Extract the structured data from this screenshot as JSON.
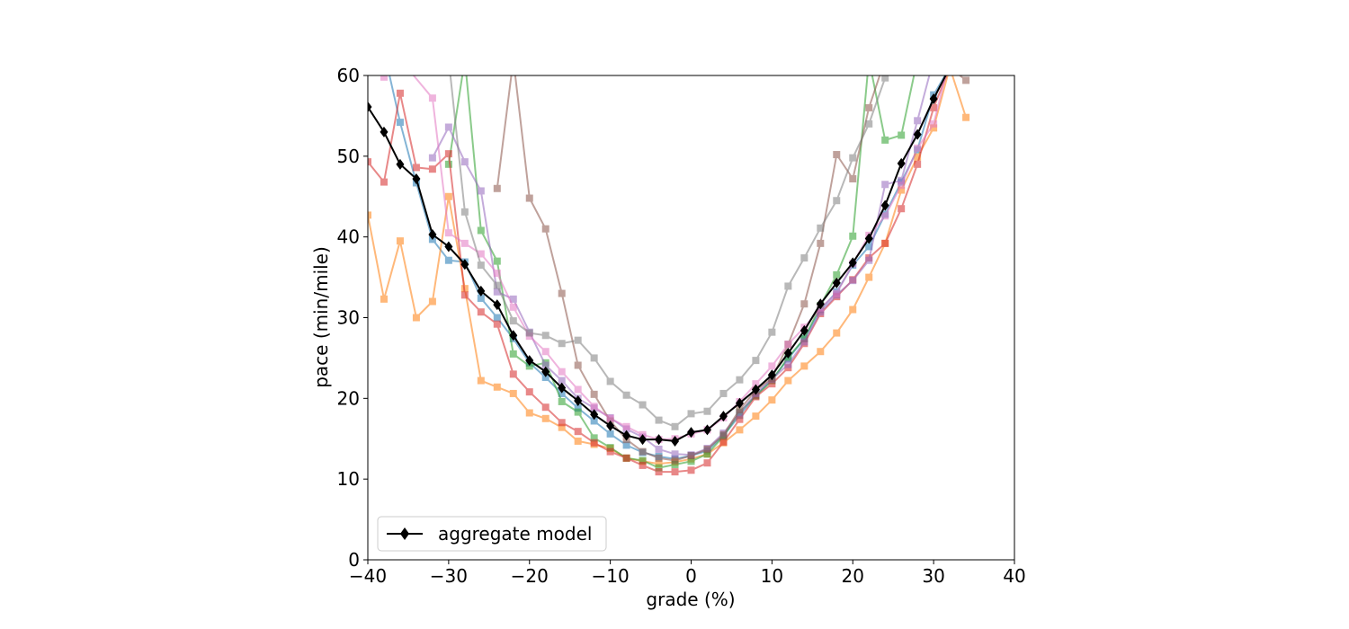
{
  "chart_data": {
    "type": "line",
    "xlabel": "grade (%)",
    "ylabel": "pace (min/mile)",
    "xlim": [
      -40,
      40
    ],
    "ylim": [
      0,
      60
    ],
    "xticks": [
      -40,
      -30,
      -20,
      -10,
      0,
      10,
      20,
      30,
      40
    ],
    "yticks": [
      0,
      10,
      20,
      30,
      40,
      50,
      60
    ],
    "xtick_labels": [
      "−40",
      "−30",
      "−20",
      "−10",
      "0",
      "10",
      "20",
      "30",
      "40"
    ],
    "ytick_labels": [
      "0",
      "10",
      "20",
      "30",
      "40",
      "50",
      "60"
    ],
    "grid": false,
    "legend": {
      "position": "lower-left",
      "entries": [
        "aggregate model"
      ]
    },
    "series": [
      {
        "name": "aggregate model",
        "color": "#000000",
        "marker": "diamond",
        "points": [
          [
            -40,
            56.1
          ],
          [
            -38,
            53.0
          ],
          [
            -36,
            49.0
          ],
          [
            -34,
            47.2
          ],
          [
            -32,
            40.3
          ],
          [
            -30,
            38.8
          ],
          [
            -28,
            36.6
          ],
          [
            -26,
            33.3
          ],
          [
            -24,
            31.6
          ],
          [
            -22,
            27.8
          ],
          [
            -20,
            24.7
          ],
          [
            -18,
            23.3
          ],
          [
            -16,
            21.3
          ],
          [
            -14,
            19.7
          ],
          [
            -12,
            18.0
          ],
          [
            -10,
            16.6
          ],
          [
            -8,
            15.4
          ],
          [
            -6,
            14.9
          ],
          [
            -4,
            14.9
          ],
          [
            -2,
            14.7
          ],
          [
            0,
            15.8
          ],
          [
            2,
            16.1
          ],
          [
            4,
            17.8
          ],
          [
            6,
            19.4
          ],
          [
            8,
            21.1
          ],
          [
            10,
            22.9
          ],
          [
            12,
            25.6
          ],
          [
            14,
            28.4
          ],
          [
            16,
            31.7
          ],
          [
            18,
            34.3
          ],
          [
            20,
            36.8
          ],
          [
            22,
            39.8
          ],
          [
            24,
            43.9
          ],
          [
            26,
            49.1
          ],
          [
            28,
            52.7
          ],
          [
            30,
            57.1
          ],
          [
            32,
            61.0
          ]
        ]
      },
      {
        "color": "#1f77b4",
        "marker": "square",
        "points": [
          [
            -38,
            63
          ],
          [
            -36,
            54.2
          ],
          [
            -34,
            46.7
          ],
          [
            -32,
            39.7
          ],
          [
            -30,
            37.1
          ],
          [
            -28,
            36.9
          ],
          [
            -26,
            32.4
          ],
          [
            -24,
            30.0
          ],
          [
            -22,
            27.4
          ],
          [
            -20,
            24.4
          ],
          [
            -18,
            22.6
          ],
          [
            -16,
            20.6
          ],
          [
            -14,
            18.8
          ],
          [
            -12,
            17.2
          ],
          [
            -10,
            15.6
          ],
          [
            -8,
            14.2
          ],
          [
            -6,
            13.3
          ],
          [
            -4,
            12.8
          ],
          [
            -2,
            12.5
          ],
          [
            0,
            12.9
          ],
          [
            2,
            13.5
          ],
          [
            4,
            15.4
          ],
          [
            6,
            17.9
          ],
          [
            8,
            20.4
          ],
          [
            10,
            22.3
          ],
          [
            12,
            24.9
          ],
          [
            14,
            27.4
          ],
          [
            16,
            31.0
          ],
          [
            18,
            33.2
          ],
          [
            20,
            36.5
          ],
          [
            22,
            38.8
          ],
          [
            24,
            42.8
          ],
          [
            26,
            46.8
          ],
          [
            28,
            50.8
          ],
          [
            30,
            57.6
          ],
          [
            32,
            61
          ]
        ]
      },
      {
        "color": "#ff7f0e",
        "marker": "square",
        "points": [
          [
            -40,
            42.7
          ],
          [
            -38,
            32.3
          ],
          [
            -36,
            39.5
          ],
          [
            -34,
            30.0
          ],
          [
            -32,
            32.0
          ],
          [
            -30,
            45.0
          ],
          [
            -28,
            33.6
          ],
          [
            -26,
            22.2
          ],
          [
            -24,
            21.4
          ],
          [
            -22,
            20.6
          ],
          [
            -20,
            18.2
          ],
          [
            -18,
            17.5
          ],
          [
            -16,
            16.4
          ],
          [
            -14,
            14.7
          ],
          [
            -12,
            14.3
          ],
          [
            -10,
            13.8
          ],
          [
            -8,
            12.6
          ],
          [
            -6,
            12.2
          ],
          [
            -4,
            11.9
          ],
          [
            -2,
            12.1
          ],
          [
            0,
            12.5
          ],
          [
            2,
            13.1
          ],
          [
            4,
            14.5
          ],
          [
            6,
            16.1
          ],
          [
            8,
            17.8
          ],
          [
            10,
            19.8
          ],
          [
            12,
            22.2
          ],
          [
            14,
            24.0
          ],
          [
            16,
            25.8
          ],
          [
            18,
            28.1
          ],
          [
            20,
            31.0
          ],
          [
            22,
            35.0
          ],
          [
            24,
            39.2
          ],
          [
            26,
            45.8
          ],
          [
            28,
            49.9
          ],
          [
            30,
            53.5
          ],
          [
            32,
            61
          ],
          [
            34,
            54.8
          ]
        ]
      },
      {
        "color": "#2ca02c",
        "marker": "square",
        "points": [
          [
            -30,
            49.0
          ],
          [
            -28,
            62
          ],
          [
            -26,
            40.8
          ],
          [
            -24,
            37.0
          ],
          [
            -22,
            25.5
          ],
          [
            -20,
            24.0
          ],
          [
            -18,
            24.4
          ],
          [
            -16,
            19.6
          ],
          [
            -14,
            18.3
          ],
          [
            -12,
            15.1
          ],
          [
            -10,
            13.9
          ],
          [
            -8,
            12.6
          ],
          [
            -6,
            12.3
          ],
          [
            -4,
            11.4
          ],
          [
            -2,
            11.8
          ],
          [
            0,
            12.2
          ],
          [
            2,
            13.1
          ],
          [
            4,
            15.3
          ],
          [
            6,
            18.3
          ],
          [
            8,
            20.3
          ],
          [
            10,
            22.2
          ],
          [
            12,
            25.1
          ],
          [
            14,
            27.4
          ],
          [
            16,
            31.5
          ],
          [
            18,
            35.3
          ],
          [
            20,
            40.1
          ],
          [
            22,
            62
          ],
          [
            24,
            52.0
          ],
          [
            26,
            52.6
          ],
          [
            28,
            62
          ]
        ]
      },
      {
        "color": "#d62728",
        "marker": "square",
        "points": [
          [
            -40,
            49.3
          ],
          [
            -38,
            46.8
          ],
          [
            -36,
            57.8
          ],
          [
            -34,
            48.6
          ],
          [
            -32,
            48.4
          ],
          [
            -30,
            50.3
          ],
          [
            -28,
            32.8
          ],
          [
            -26,
            30.7
          ],
          [
            -24,
            29.2
          ],
          [
            -22,
            23.0
          ],
          [
            -20,
            20.8
          ],
          [
            -18,
            18.9
          ],
          [
            -16,
            17.0
          ],
          [
            -14,
            15.9
          ],
          [
            -12,
            14.5
          ],
          [
            -10,
            13.4
          ],
          [
            -8,
            12.6
          ],
          [
            -6,
            11.7
          ],
          [
            -4,
            10.9
          ],
          [
            -2,
            10.9
          ],
          [
            0,
            11.1
          ],
          [
            2,
            12.0
          ],
          [
            4,
            14.6
          ],
          [
            6,
            17.4
          ],
          [
            8,
            20.2
          ],
          [
            10,
            21.8
          ],
          [
            12,
            23.8
          ],
          [
            14,
            26.8
          ],
          [
            16,
            30.5
          ],
          [
            18,
            32.6
          ],
          [
            20,
            34.7
          ],
          [
            22,
            37.4
          ],
          [
            24,
            39.2
          ],
          [
            26,
            43.5
          ],
          [
            28,
            49.0
          ],
          [
            30,
            56.0
          ],
          [
            32,
            61
          ]
        ]
      },
      {
        "color": "#9467bd",
        "marker": "square",
        "points": [
          [
            -32,
            49.8
          ],
          [
            -30,
            53.6
          ],
          [
            -28,
            49.3
          ],
          [
            -26,
            45.7
          ],
          [
            -24,
            33.2
          ],
          [
            -22,
            32.3
          ],
          [
            -20,
            28.2
          ],
          [
            -18,
            24.1
          ],
          [
            -16,
            22.2
          ],
          [
            -14,
            20.0
          ],
          [
            -12,
            18.8
          ],
          [
            -10,
            17.6
          ],
          [
            -8,
            16.2
          ],
          [
            -6,
            15.2
          ],
          [
            -4,
            13.7
          ],
          [
            -2,
            13.1
          ],
          [
            0,
            13.0
          ],
          [
            2,
            13.8
          ],
          [
            4,
            15.7
          ],
          [
            6,
            18.2
          ],
          [
            8,
            20.6
          ],
          [
            10,
            22.4
          ],
          [
            12,
            24.2
          ],
          [
            14,
            27.0
          ],
          [
            16,
            30.7
          ],
          [
            18,
            32.8
          ],
          [
            20,
            34.6
          ],
          [
            22,
            37.1
          ],
          [
            24,
            46.5
          ],
          [
            26,
            47.0
          ],
          [
            28,
            54.4
          ],
          [
            30,
            62
          ]
        ]
      },
      {
        "color": "#8c564b",
        "marker": "square",
        "points": [
          [
            -24,
            46.0
          ],
          [
            -22,
            62
          ],
          [
            -20,
            44.8
          ],
          [
            -18,
            41.0
          ],
          [
            -16,
            33.0
          ],
          [
            -14,
            24.1
          ],
          [
            -12,
            20.5
          ],
          [
            -10,
            17.2
          ],
          [
            -8,
            14.9
          ],
          [
            -6,
            13.4
          ],
          [
            -4,
            12.6
          ],
          [
            -2,
            12.3
          ],
          [
            0,
            12.9
          ],
          [
            2,
            13.7
          ],
          [
            4,
            15.5
          ],
          [
            6,
            18.6
          ],
          [
            8,
            21.0
          ],
          [
            10,
            22.5
          ],
          [
            12,
            26.7
          ],
          [
            14,
            31.7
          ],
          [
            16,
            39.2
          ],
          [
            18,
            50.2
          ],
          [
            20,
            47.2
          ],
          [
            22,
            56.0
          ],
          [
            24,
            62
          ],
          [
            32,
            61
          ],
          [
            34,
            59.4
          ]
        ]
      },
      {
        "color": "#e377c2",
        "marker": "square",
        "points": [
          [
            -38,
            59.8
          ],
          [
            -36,
            62
          ],
          [
            -32,
            57.2
          ],
          [
            -30,
            40.5
          ],
          [
            -28,
            39.2
          ],
          [
            -26,
            37.9
          ],
          [
            -24,
            35.5
          ],
          [
            -22,
            31.3
          ],
          [
            -20,
            27.7
          ],
          [
            -18,
            25.8
          ],
          [
            -16,
            23.3
          ],
          [
            -14,
            21.1
          ],
          [
            -12,
            19.0
          ],
          [
            -10,
            17.5
          ],
          [
            -8,
            16.5
          ],
          [
            -6,
            15.5
          ],
          [
            -4,
            14.9
          ],
          [
            -2,
            15.0
          ],
          [
            0,
            15.6
          ],
          [
            2,
            16.1
          ],
          [
            4,
            17.6
          ],
          [
            6,
            19.6
          ],
          [
            8,
            21.8
          ],
          [
            10,
            24.0
          ],
          [
            12,
            26.7
          ],
          [
            14,
            28.8
          ],
          [
            16,
            31.2
          ],
          [
            18,
            33.0
          ],
          [
            20,
            36.7
          ],
          [
            22,
            40.2
          ],
          [
            24,
            42.6
          ],
          [
            26,
            46.4
          ],
          [
            28,
            51.0
          ],
          [
            30,
            54.0
          ],
          [
            32,
            62
          ]
        ]
      },
      {
        "color": "#7f7f7f",
        "marker": "square",
        "points": [
          [
            -30,
            62
          ],
          [
            -28,
            43.1
          ],
          [
            -26,
            36.5
          ],
          [
            -24,
            34.0
          ],
          [
            -22,
            29.6
          ],
          [
            -20,
            28.1
          ],
          [
            -18,
            27.8
          ],
          [
            -16,
            26.8
          ],
          [
            -14,
            27.2
          ],
          [
            -12,
            25.0
          ],
          [
            -10,
            22.1
          ],
          [
            -8,
            20.4
          ],
          [
            -6,
            19.2
          ],
          [
            -4,
            17.3
          ],
          [
            -2,
            16.5
          ],
          [
            0,
            18.1
          ],
          [
            2,
            18.4
          ],
          [
            4,
            20.6
          ],
          [
            6,
            22.3
          ],
          [
            8,
            24.7
          ],
          [
            10,
            28.2
          ],
          [
            12,
            33.9
          ],
          [
            14,
            37.4
          ],
          [
            16,
            41.1
          ],
          [
            18,
            44.5
          ],
          [
            20,
            49.8
          ],
          [
            22,
            54.0
          ],
          [
            24,
            59.7
          ],
          [
            26,
            62
          ]
        ]
      }
    ]
  }
}
